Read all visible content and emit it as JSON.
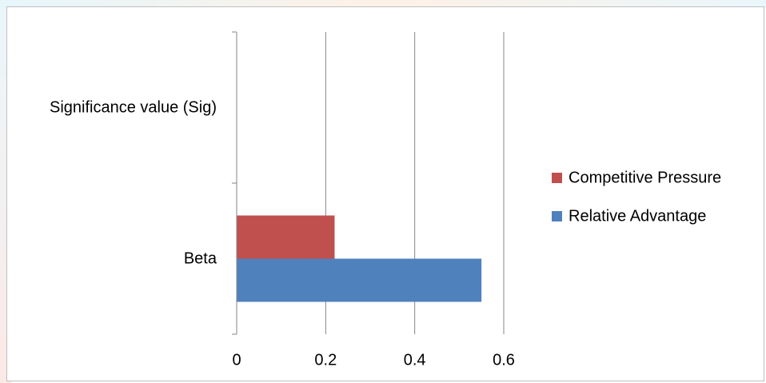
{
  "chart_data": {
    "type": "bar",
    "orientation": "horizontal",
    "categories": [
      "Beta",
      "Significance value (Sig)"
    ],
    "series": [
      {
        "name": "Relative Advantage",
        "values": [
          0.55,
          null
        ],
        "color": "#4f81bd"
      },
      {
        "name": "Competitive Pressure",
        "values": [
          0.22,
          null
        ],
        "color": "#c0504d"
      }
    ],
    "xlim": [
      0,
      0.6
    ],
    "xticks": [
      "0",
      "0.2",
      "0.4",
      "0.6"
    ],
    "grid": "vertical",
    "legend": {
      "placement": "right",
      "entries": [
        "Competitive Pressure",
        "Relative Advantage"
      ]
    }
  },
  "colors": {
    "gridline": "#868686",
    "axis": "#868686",
    "background_accent_1": "#e8f6fb",
    "background_accent_2": "#fdeee8"
  }
}
